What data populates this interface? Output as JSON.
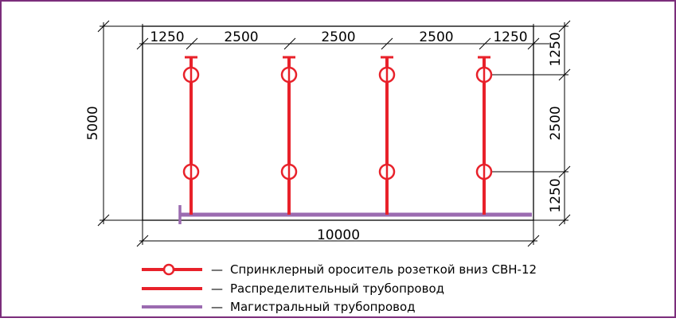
{
  "colors": {
    "frame": "#7b2d7b",
    "sprinkler": "#e8212a",
    "distribution_pipe": "#e8212a",
    "main_pipe": "#9b6bb0",
    "lines": "#000000"
  },
  "dimensions": {
    "top": [
      "1250",
      "2500",
      "2500",
      "2500",
      "1250"
    ],
    "bottom_total": "10000",
    "left_total": "5000",
    "right": [
      "1250",
      "2500",
      "1250"
    ]
  },
  "legend": {
    "dash": "—",
    "items": [
      {
        "label": "Спринклерный ороситель розеткой вниз СВН-12",
        "symbol": "sprinkler-line-icon"
      },
      {
        "label": "Распределительный трубопровод",
        "symbol": "red-line-icon"
      },
      {
        "label": "Магистральный трубопровод",
        "symbol": "purple-line-icon"
      }
    ]
  }
}
